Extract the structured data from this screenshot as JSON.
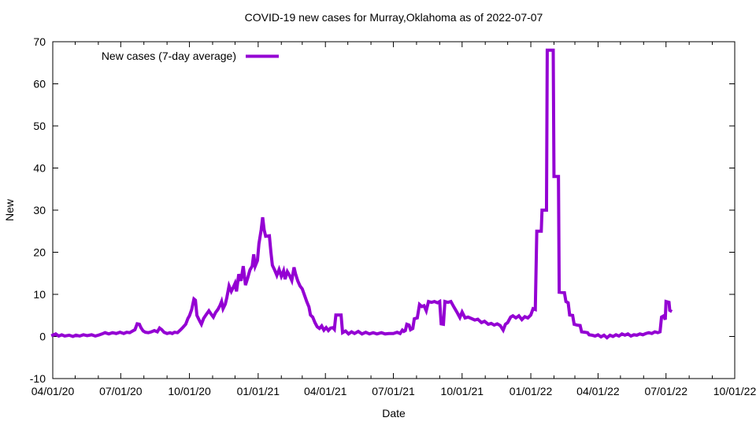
{
  "chart_data": {
    "type": "line",
    "title": "COVID-19 new cases for Murray,Oklahoma as of 2022-07-07",
    "xlabel": "Date",
    "ylabel": "New",
    "legend": {
      "label": "New cases (7-day average)",
      "position": "top-left-inside"
    },
    "line_color": "#9400d3",
    "axis_color": "#000000",
    "background_color": "#ffffff",
    "grid": false,
    "x_start_date": "2020-04-01",
    "x_end_date": "2022-10-01",
    "ylim": [
      -10,
      70
    ],
    "y_ticks": [
      -10,
      0,
      10,
      20,
      30,
      40,
      50,
      60,
      70
    ],
    "x_ticks": [
      "04/01/20",
      "07/01/20",
      "10/01/20",
      "01/01/21",
      "04/01/21",
      "07/01/21",
      "10/01/21",
      "01/01/22",
      "04/01/22",
      "07/01/22",
      "10/01/22"
    ],
    "x_minor_tick_interval": "month",
    "series": [
      {
        "name": "New cases (7-day average)",
        "x_unit": "days since 2020-04-01",
        "points": [
          [
            0,
            0.3
          ],
          [
            4,
            0.6
          ],
          [
            8,
            0.1
          ],
          [
            12,
            0.4
          ],
          [
            16,
            0.1
          ],
          [
            22,
            0.3
          ],
          [
            27,
            0.0
          ],
          [
            31,
            0.3
          ],
          [
            36,
            0.1
          ],
          [
            41,
            0.4
          ],
          [
            46,
            0.2
          ],
          [
            52,
            0.4
          ],
          [
            57,
            0.1
          ],
          [
            61,
            0.3
          ],
          [
            66,
            0.6
          ],
          [
            70,
            0.9
          ],
          [
            75,
            0.6
          ],
          [
            80,
            0.9
          ],
          [
            85,
            0.7
          ],
          [
            90,
            1.0
          ],
          [
            95,
            0.7
          ],
          [
            99,
            1.0
          ],
          [
            103,
            0.9
          ],
          [
            107,
            1.3
          ],
          [
            110,
            1.6
          ],
          [
            113,
            3.0
          ],
          [
            116,
            2.9
          ],
          [
            118,
            2.1
          ],
          [
            121,
            1.3
          ],
          [
            124,
            1.0
          ],
          [
            128,
            0.9
          ],
          [
            132,
            1.1
          ],
          [
            136,
            1.4
          ],
          [
            140,
            1.1
          ],
          [
            143,
            2.0
          ],
          [
            146,
            1.6
          ],
          [
            149,
            1.0
          ],
          [
            153,
            0.7
          ],
          [
            157,
            0.9
          ],
          [
            160,
            0.7
          ],
          [
            163,
            1.0
          ],
          [
            167,
            0.9
          ],
          [
            170,
            1.4
          ],
          [
            174,
            2.1
          ],
          [
            178,
            2.9
          ],
          [
            181,
            4.3
          ],
          [
            183,
            4.9
          ],
          [
            186,
            6.4
          ],
          [
            189,
            8.9
          ],
          [
            191,
            8.6
          ],
          [
            193,
            5.0
          ],
          [
            196,
            3.9
          ],
          [
            199,
            2.9
          ],
          [
            202,
            4.3
          ],
          [
            205,
            5.1
          ],
          [
            209,
            6.1
          ],
          [
            212,
            5.3
          ],
          [
            215,
            4.6
          ],
          [
            218,
            5.7
          ],
          [
            221,
            6.4
          ],
          [
            224,
            7.4
          ],
          [
            226,
            8.3
          ],
          [
            228,
            6.6
          ],
          [
            231,
            7.7
          ],
          [
            233,
            9.2
          ],
          [
            236,
            12.0
          ],
          [
            239,
            10.7
          ],
          [
            241,
            11.4
          ],
          [
            244,
            12.6
          ],
          [
            246,
            10.7
          ],
          [
            249,
            14.8
          ],
          [
            252,
            13.2
          ],
          [
            255,
            16.7
          ],
          [
            258,
            12.2
          ],
          [
            261,
            13.9
          ],
          [
            264,
            15.8
          ],
          [
            267,
            16.7
          ],
          [
            269,
            19.5
          ],
          [
            271,
            16.7
          ],
          [
            274,
            18.0
          ],
          [
            276,
            22.0
          ],
          [
            279,
            25.3
          ],
          [
            281,
            28.3
          ],
          [
            283,
            25.3
          ],
          [
            285,
            23.8
          ],
          [
            290,
            23.9
          ],
          [
            292,
            20.1
          ],
          [
            294,
            16.9
          ],
          [
            297,
            15.8
          ],
          [
            300,
            14.5
          ],
          [
            303,
            15.9
          ],
          [
            306,
            14.3
          ],
          [
            309,
            15.6
          ],
          [
            311,
            13.6
          ],
          [
            314,
            15.4
          ],
          [
            317,
            14.5
          ],
          [
            320,
            13.3
          ],
          [
            323,
            16.4
          ],
          [
            325,
            14.9
          ],
          [
            328,
            13.2
          ],
          [
            331,
            12.0
          ],
          [
            334,
            11.3
          ],
          [
            337,
            9.8
          ],
          [
            340,
            8.3
          ],
          [
            343,
            7.0
          ],
          [
            345,
            5.1
          ],
          [
            348,
            4.6
          ],
          [
            351,
            3.3
          ],
          [
            354,
            2.3
          ],
          [
            357,
            1.9
          ],
          [
            360,
            2.5
          ],
          [
            363,
            1.5
          ],
          [
            366,
            2.1
          ],
          [
            369,
            1.4
          ],
          [
            372,
            2.0
          ],
          [
            375,
            2.1
          ],
          [
            377,
            1.7
          ],
          [
            379,
            5.1
          ],
          [
            386,
            5.1
          ],
          [
            388,
            0.9
          ],
          [
            392,
            1.3
          ],
          [
            396,
            0.6
          ],
          [
            400,
            1.1
          ],
          [
            404,
            0.7
          ],
          [
            409,
            1.2
          ],
          [
            414,
            0.6
          ],
          [
            419,
            1.0
          ],
          [
            424,
            0.6
          ],
          [
            429,
            0.9
          ],
          [
            434,
            0.6
          ],
          [
            440,
            0.9
          ],
          [
            445,
            0.6
          ],
          [
            450,
            0.7
          ],
          [
            456,
            0.7
          ],
          [
            461,
            1.0
          ],
          [
            465,
            0.7
          ],
          [
            468,
            1.5
          ],
          [
            470,
            1.2
          ],
          [
            472,
            1.4
          ],
          [
            474,
            2.9
          ],
          [
            477,
            2.7
          ],
          [
            479,
            1.6
          ],
          [
            482,
            1.9
          ],
          [
            484,
            4.2
          ],
          [
            488,
            4.4
          ],
          [
            491,
            7.6
          ],
          [
            494,
            7.1
          ],
          [
            497,
            7.3
          ],
          [
            500,
            6.1
          ],
          [
            503,
            8.3
          ],
          [
            507,
            8.1
          ],
          [
            511,
            8.3
          ],
          [
            515,
            8.0
          ],
          [
            518,
            8.3
          ],
          [
            520,
            3.0
          ],
          [
            523,
            2.9
          ],
          [
            525,
            8.3
          ],
          [
            529,
            8.1
          ],
          [
            533,
            8.3
          ],
          [
            537,
            7.0
          ],
          [
            541,
            5.8
          ],
          [
            545,
            4.5
          ],
          [
            548,
            5.8
          ],
          [
            552,
            4.4
          ],
          [
            556,
            4.6
          ],
          [
            560,
            4.3
          ],
          [
            565,
            3.9
          ],
          [
            569,
            4.1
          ],
          [
            574,
            3.3
          ],
          [
            578,
            3.6
          ],
          [
            583,
            2.9
          ],
          [
            587,
            3.1
          ],
          [
            591,
            2.7
          ],
          [
            595,
            3.0
          ],
          [
            599,
            2.6
          ],
          [
            603,
            1.5
          ],
          [
            606,
            2.9
          ],
          [
            609,
            3.3
          ],
          [
            613,
            4.6
          ],
          [
            616,
            4.9
          ],
          [
            620,
            4.4
          ],
          [
            624,
            4.9
          ],
          [
            628,
            4.0
          ],
          [
            632,
            4.7
          ],
          [
            636,
            4.4
          ],
          [
            640,
            5.1
          ],
          [
            643,
            6.6
          ],
          [
            646,
            6.4
          ],
          [
            648,
            25.0
          ],
          [
            654,
            25.0
          ],
          [
            655,
            30.0
          ],
          [
            661,
            30.0
          ],
          [
            662,
            68.0
          ],
          [
            670,
            68.0
          ],
          [
            671,
            38.0
          ],
          [
            677,
            38.0
          ],
          [
            678,
            10.5
          ],
          [
            685,
            10.4
          ],
          [
            687,
            8.3
          ],
          [
            690,
            8.0
          ],
          [
            692,
            5.1
          ],
          [
            696,
            5.0
          ],
          [
            698,
            2.9
          ],
          [
            702,
            2.7
          ],
          [
            706,
            2.6
          ],
          [
            708,
            1.1
          ],
          [
            712,
            1.0
          ],
          [
            716,
            0.9
          ],
          [
            718,
            0.4
          ],
          [
            722,
            0.3
          ],
          [
            726,
            0.1
          ],
          [
            730,
            0.4
          ],
          [
            734,
            -0.1
          ],
          [
            738,
            0.3
          ],
          [
            742,
            -0.3
          ],
          [
            746,
            0.3
          ],
          [
            750,
            0.0
          ],
          [
            754,
            0.4
          ],
          [
            758,
            0.1
          ],
          [
            762,
            0.6
          ],
          [
            766,
            0.3
          ],
          [
            770,
            0.6
          ],
          [
            774,
            0.1
          ],
          [
            778,
            0.4
          ],
          [
            782,
            0.3
          ],
          [
            786,
            0.6
          ],
          [
            790,
            0.4
          ],
          [
            794,
            0.7
          ],
          [
            798,
            0.9
          ],
          [
            802,
            0.7
          ],
          [
            806,
            1.1
          ],
          [
            810,
            0.9
          ],
          [
            813,
            1.1
          ],
          [
            815,
            4.6
          ],
          [
            818,
            4.9
          ],
          [
            820,
            4.0
          ],
          [
            821,
            8.3
          ],
          [
            825,
            8.1
          ],
          [
            826,
            6.2
          ],
          [
            827,
            6.1
          ]
        ]
      }
    ]
  }
}
